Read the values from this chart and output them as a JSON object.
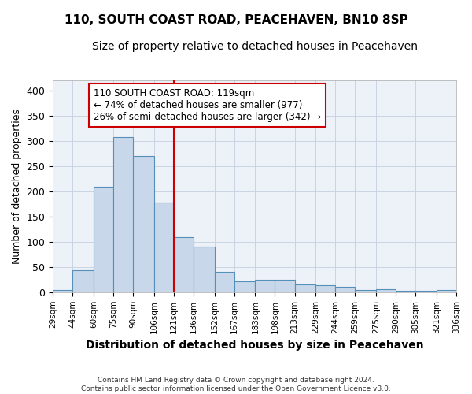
{
  "title": "110, SOUTH COAST ROAD, PEACEHAVEN, BN10 8SP",
  "subtitle": "Size of property relative to detached houses in Peacehaven",
  "xlabel": "Distribution of detached houses by size in Peacehaven",
  "ylabel": "Number of detached properties",
  "bar_color": "#c8d8ea",
  "bar_edge_color": "#5590bb",
  "grid_color": "#c5cfe0",
  "background_color": "#edf1f8",
  "vline_color": "#cc0000",
  "annotation_text": "110 SOUTH COAST ROAD: 119sqm\n← 74% of detached houses are smaller (977)\n26% of semi-detached houses are larger (342) →",
  "annotation_box_color": "#ffffff",
  "annotation_box_edge": "#cc0000",
  "footnote": "Contains HM Land Registry data © Crown copyright and database right 2024.\nContains public sector information licensed under the Open Government Licence v3.0.",
  "bins": [
    29,
    44,
    60,
    75,
    90,
    106,
    121,
    136,
    152,
    167,
    183,
    198,
    213,
    229,
    244,
    259,
    275,
    290,
    305,
    321,
    336
  ],
  "counts": [
    5,
    43,
    210,
    308,
    270,
    178,
    110,
    90,
    40,
    22,
    25,
    25,
    15,
    14,
    11,
    5,
    6,
    3,
    3,
    5
  ],
  "ylim": [
    0,
    420
  ],
  "yticks": [
    0,
    50,
    100,
    150,
    200,
    250,
    300,
    350,
    400
  ]
}
